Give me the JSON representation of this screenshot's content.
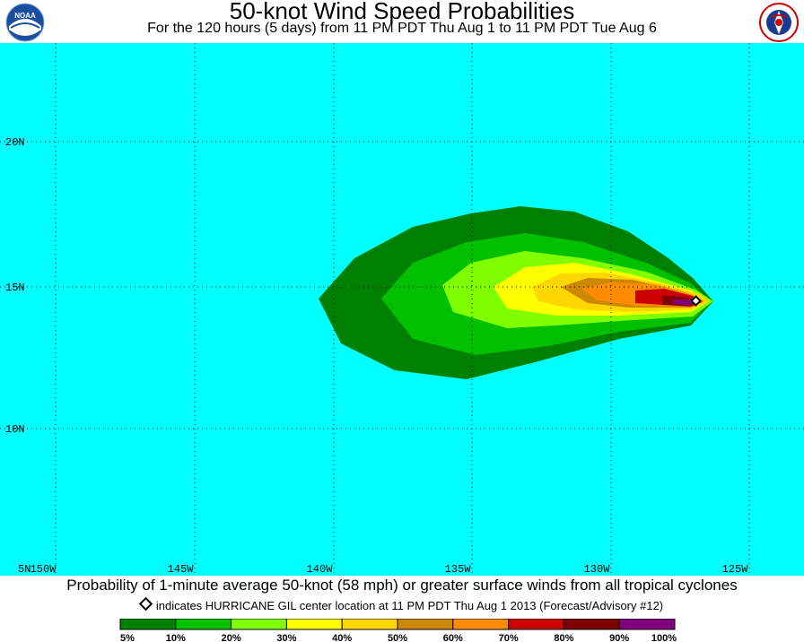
{
  "header": {
    "title": "50-knot Wind Speed Probabilities",
    "subtitle": "For the 120 hours (5 days) from 11 PM PDT Thu Aug 1 to 11 PM PDT Tue Aug 6"
  },
  "logos": {
    "left": {
      "name": "noaa-logo",
      "text": "NOAA"
    },
    "right": {
      "name": "nws-logo",
      "text": "NATIONAL WEATHER SERVICE"
    }
  },
  "map": {
    "ocean_color": "#00ffff",
    "grid_color": "#000000",
    "lat_labels": [
      "20N",
      "15N",
      "10N",
      "5N"
    ],
    "lon_labels": [
      "150W",
      "145W",
      "140W",
      "135W",
      "130W",
      "125W"
    ]
  },
  "storm": {
    "name": "HURRICANE GIL",
    "marker": "diamond-icon"
  },
  "footer": {
    "title": "Probability of 1-minute average 50-knot (58 mph) or greater surface winds from all tropical cyclones",
    "note": "indicates HURRICANE GIL center location at 11 PM PDT Thu Aug 1 2013 (Forecast/Advisory #12)"
  },
  "legend": {
    "colors": [
      "#008000",
      "#00c000",
      "#80ff00",
      "#ffff00",
      "#ffd700",
      "#cc8800",
      "#ff8c00",
      "#cc0000",
      "#800000",
      "#800080"
    ],
    "labels": [
      "5%",
      "10%",
      "20%",
      "30%",
      "40%",
      "50%",
      "60%",
      "70%",
      "80%",
      "90%",
      "100%"
    ]
  }
}
